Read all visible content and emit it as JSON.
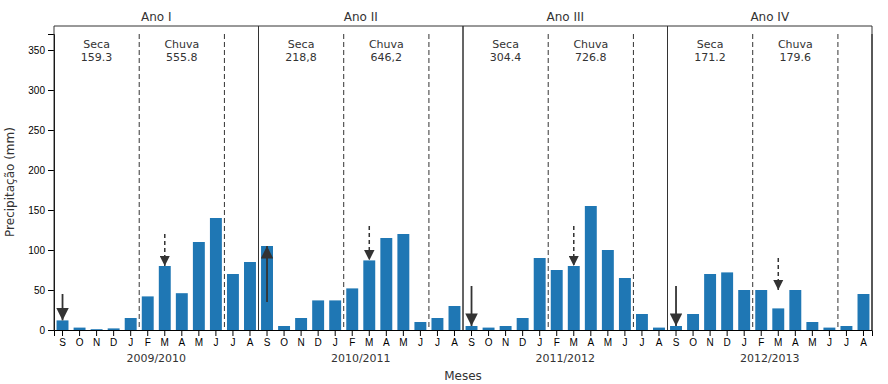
{
  "chart_data": {
    "type": "bar",
    "xlabel": "Meses",
    "ylabel": "Precipitação (mm)",
    "categories": [
      "S",
      "O",
      "N",
      "D",
      "J",
      "F",
      "M",
      "A",
      "M",
      "J",
      "J",
      "A",
      "S",
      "O",
      "N",
      "D",
      "J",
      "F",
      "M",
      "A",
      "M",
      "J",
      "J",
      "A",
      "S",
      "O",
      "N",
      "D",
      "J",
      "F",
      "M",
      "A",
      "M",
      "J",
      "J",
      "A",
      "S",
      "O",
      "N",
      "D",
      "J",
      "F",
      "M",
      "A",
      "M",
      "J",
      "J",
      "A"
    ],
    "values": [
      12,
      3,
      1,
      2,
      15,
      42,
      80,
      46,
      110,
      140,
      70,
      85,
      105,
      5,
      15,
      37,
      37,
      52,
      87,
      115,
      120,
      10,
      15,
      30,
      5,
      3,
      5,
      15,
      90,
      75,
      80,
      155,
      100,
      65,
      20,
      3,
      5,
      20,
      70,
      72,
      50,
      50,
      27,
      50,
      10,
      3,
      5,
      45
    ],
    "ylim": [
      0,
      370
    ],
    "yticks": [
      0,
      50,
      100,
      150,
      200,
      250,
      300,
      350
    ],
    "periods": [
      {
        "label": "Ano I",
        "year": "2009/2010",
        "start": 0,
        "end": 11,
        "seca": {
          "text": "Seca\n159.3",
          "start": 0,
          "end": 4
        },
        "chuva": {
          "text": "Chuva\n555.8",
          "start": 5,
          "end": 9
        }
      },
      {
        "label": "Ano II",
        "year": "2010/2011",
        "start": 12,
        "end": 23,
        "seca": {
          "text": "Seca\n218,8",
          "start": 12,
          "end": 16
        },
        "chuva": {
          "text": "Chuva\n646,2",
          "start": 17,
          "end": 21
        }
      },
      {
        "label": "Ano III",
        "year": "2011/2012",
        "start": 24,
        "end": 35,
        "seca": {
          "text": "Seca\n304.4",
          "start": 24,
          "end": 28
        },
        "chuva": {
          "text": "Chuva\n726.8",
          "start": 29,
          "end": 33
        }
      },
      {
        "label": "Ano IV",
        "year": "2012/2013",
        "start": 36,
        "end": 47,
        "seca": {
          "text": "Seca\n171.2",
          "start": 36,
          "end": 40
        },
        "chuva": {
          "text": "Chuva\n179.6",
          "start": 41,
          "end": 45
        }
      }
    ],
    "arrows": [
      {
        "x": 0,
        "from": 45,
        "to": 12,
        "line_style": "solid"
      },
      {
        "x": 12,
        "from": 35,
        "to": 105,
        "line_style": "solid"
      },
      {
        "x": 24,
        "from": 55,
        "to": 5,
        "line_style": "solid"
      },
      {
        "x": 36,
        "from": 55,
        "to": 5,
        "line_style": "solid"
      },
      {
        "x": 6,
        "from": 120,
        "to": 80,
        "line_style": "dashed"
      },
      {
        "x": 18,
        "from": 130,
        "to": 87,
        "line_style": "dashed"
      },
      {
        "x": 30,
        "from": 130,
        "to": 80,
        "line_style": "dashed"
      },
      {
        "x": 42,
        "from": 90,
        "to": 50,
        "line_style": "dashed"
      }
    ]
  }
}
